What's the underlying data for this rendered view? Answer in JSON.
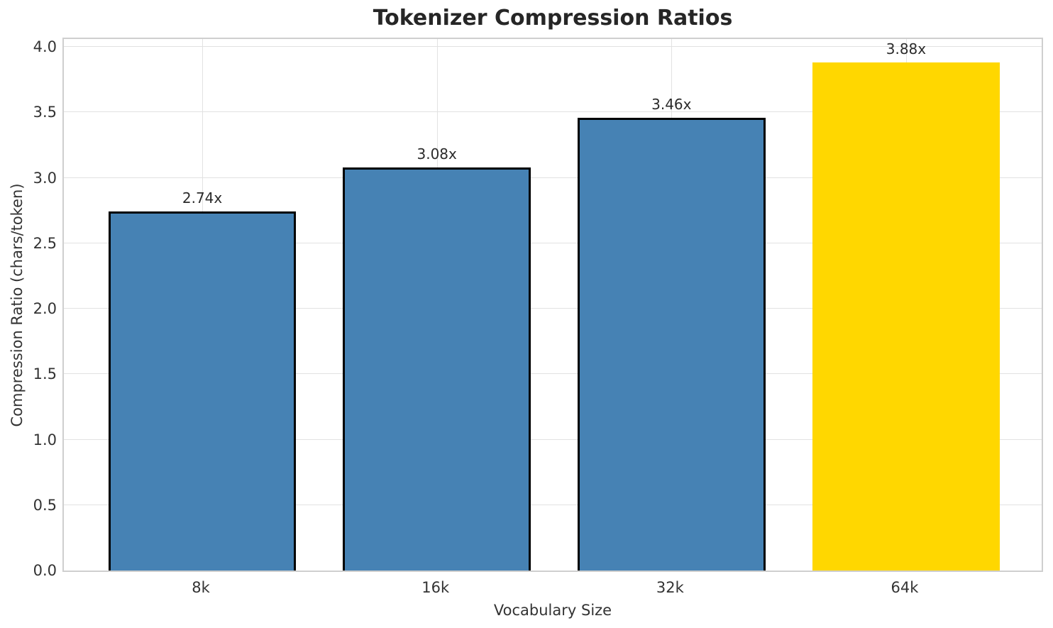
{
  "chart_data": {
    "type": "bar",
    "title": "Tokenizer Compression Ratios",
    "xlabel": "Vocabulary Size",
    "ylabel": "Compression Ratio (chars/token)",
    "categories": [
      "8k",
      "16k",
      "32k",
      "64k"
    ],
    "values": [
      2.74,
      3.08,
      3.46,
      3.88
    ],
    "bar_labels": [
      "2.74x",
      "3.08x",
      "3.46x",
      "3.88x"
    ],
    "ylim": [
      0,
      4.0
    ],
    "ytick_values": [
      0.0,
      0.5,
      1.0,
      1.5,
      2.0,
      2.5,
      3.0,
      3.5,
      4.0
    ],
    "ytick_labels": [
      "0.0",
      "0.5",
      "1.0",
      "1.5",
      "2.0",
      "2.5",
      "3.0",
      "3.5",
      "4.0"
    ],
    "grid": true,
    "legend": "none",
    "bar_colors": [
      "#4682B4",
      "#4682B4",
      "#4682B4",
      "#FFD700"
    ],
    "bar_edge_colors": [
      "#000000",
      "#000000",
      "#000000",
      "none"
    ],
    "base_color": "#4682B4",
    "highlight_color": "#FFD700",
    "grid_color": "#e2e2e2",
    "spine_color": "#cfcfcf",
    "text_color": "#333333",
    "title_color": "#262626"
  }
}
